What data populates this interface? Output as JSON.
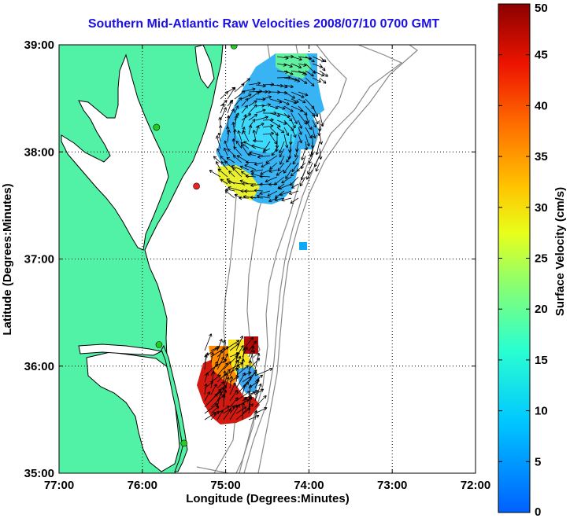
{
  "title": "Southern Mid-Atlantic Raw Velocities 2008/07/10 0700 GMT",
  "map": {
    "xlabel": "Longitude (Degrees:Minutes)",
    "ylabel": "Latitude (Degrees:Minutes)",
    "lon_range": [
      -77,
      -72
    ],
    "lat_range": [
      35,
      39
    ],
    "x_ticks": [
      {
        "value": -77,
        "label": "77:00"
      },
      {
        "value": -76,
        "label": "76:00"
      },
      {
        "value": -75,
        "label": "75:00"
      },
      {
        "value": -74,
        "label": "74:00"
      },
      {
        "value": -73,
        "label": "73:00"
      },
      {
        "value": -72,
        "label": "72:00"
      }
    ],
    "y_ticks": [
      {
        "value": 39,
        "label": "39:00"
      },
      {
        "value": 38,
        "label": "38:00"
      },
      {
        "value": 37,
        "label": "37:00"
      },
      {
        "value": 36,
        "label": "36:00"
      },
      {
        "value": 35,
        "label": "35:00"
      }
    ],
    "grid": "dotted",
    "land_color": "#52f2a6",
    "radar_sites": [
      {
        "lon": -74.9,
        "lat": 38.99,
        "color": "#22cc22"
      },
      {
        "lon": -75.83,
        "lat": 38.23,
        "color": "#22cc22"
      },
      {
        "lon": -75.35,
        "lat": 37.68,
        "color": "#ee2222"
      },
      {
        "lon": -75.8,
        "lat": 36.2,
        "color": "#22cc22"
      },
      {
        "lon": -75.5,
        "lat": 35.28,
        "color": "#22cc22"
      }
    ]
  },
  "colorbar": {
    "label": "Surface Velocity (cm/s)",
    "min": 0,
    "max": 50,
    "ticks": [
      "0",
      "5",
      "10",
      "15",
      "20",
      "25",
      "30",
      "35",
      "40",
      "45",
      "50"
    ]
  }
}
